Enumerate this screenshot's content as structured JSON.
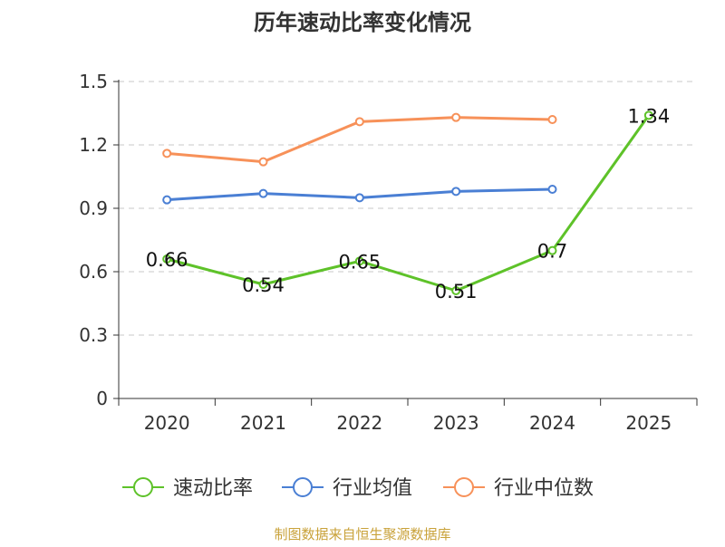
{
  "chart_data": {
    "type": "line",
    "title": "历年速动比率变化情况",
    "xlabel": "",
    "ylabel": "",
    "categories": [
      "2020",
      "2021",
      "2022",
      "2023",
      "2024",
      "2025"
    ],
    "ylim": [
      0,
      1.5
    ],
    "yticks": [
      0,
      0.3,
      0.6,
      0.9,
      1.2,
      1.5
    ],
    "ytick_labels": [
      "0",
      "0.3",
      "0.6",
      "0.9",
      "1.2",
      "1.5"
    ],
    "grid": true,
    "legend_position": "bottom",
    "series": [
      {
        "name": "速动比率",
        "color": "#5ec229",
        "values": [
          0.66,
          0.54,
          0.65,
          0.51,
          0.7,
          1.34
        ],
        "labels": [
          "0.66",
          "0.54",
          "0.65",
          "0.51",
          "0.7",
          "1.34"
        ]
      },
      {
        "name": "行业均值",
        "color": "#4a7fd4",
        "values": [
          0.94,
          0.97,
          0.95,
          0.98,
          0.99,
          null
        ]
      },
      {
        "name": "行业中位数",
        "color": "#f79159",
        "values": [
          1.16,
          1.12,
          1.31,
          1.33,
          1.32,
          null
        ]
      }
    ]
  },
  "footer": {
    "source": "制图数据来自恒生聚源数据库"
  }
}
